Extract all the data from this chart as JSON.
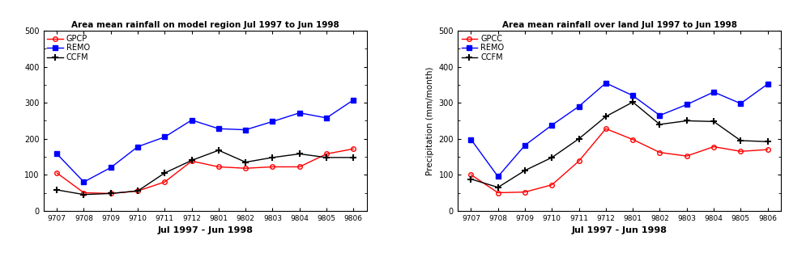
{
  "x_labels": [
    "9707",
    "9708",
    "9709",
    "9710",
    "9711",
    "9712",
    "9801",
    "9802",
    "9803",
    "9804",
    "9805",
    "9806"
  ],
  "x_positions": [
    0,
    1,
    2,
    3,
    4,
    5,
    6,
    7,
    8,
    9,
    10,
    11
  ],
  "left_title": "Area mean rainfall on model region Jul 1997 to Jun 1998",
  "left_gpcp": [
    105,
    50,
    48,
    55,
    80,
    138,
    122,
    118,
    122,
    122,
    158,
    172
  ],
  "left_remo": [
    158,
    80,
    120,
    178,
    205,
    252,
    228,
    225,
    248,
    272,
    258,
    308
  ],
  "left_ccfm": [
    58,
    45,
    48,
    55,
    105,
    140,
    168,
    135,
    148,
    158,
    148,
    148
  ],
  "right_title": "Area mean rainfall over land Jul 1997 to Jun 1998",
  "right_gpcc": [
    100,
    50,
    52,
    72,
    138,
    228,
    198,
    162,
    152,
    178,
    165,
    170
  ],
  "right_remo": [
    198,
    95,
    182,
    238,
    290,
    355,
    320,
    265,
    295,
    330,
    298,
    352
  ],
  "right_ccfm": [
    88,
    65,
    112,
    148,
    200,
    262,
    302,
    240,
    250,
    248,
    195,
    192
  ],
  "xlabel": "Jul 1997 - Jun 1998",
  "ylabel_right": "Precipitation (mm/month)",
  "ylim": [
    0,
    500
  ],
  "yticks": [
    0,
    100,
    200,
    300,
    400,
    500
  ],
  "color_obs": "#ff0000",
  "color_remo": "#0000ff",
  "color_ccfm": "#000000",
  "legend_left": [
    "GPCP",
    "REMO",
    "CCFM"
  ],
  "legend_right": [
    "GPCC",
    "REMO",
    "CCFM"
  ]
}
